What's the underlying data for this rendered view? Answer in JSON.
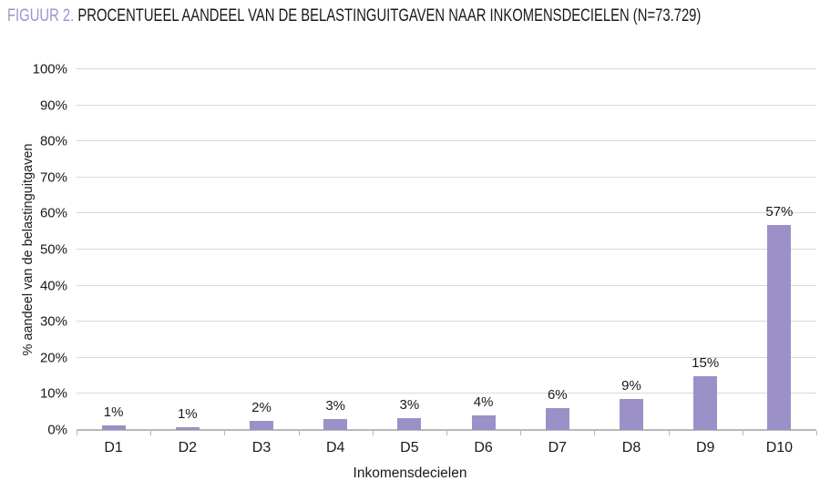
{
  "figure": {
    "title_prefix": "FIGUUR 2.",
    "title_rest": " PROCENTUEEL AANDEEL VAN DE BELASTINGUITGAVEN NAAR INKOMENSDECIELEN (N=73.729)"
  },
  "chart_data": {
    "type": "bar",
    "title": "FIGUUR 2. PROCENTUEEL AANDEEL VAN DE BELASTINGUITGAVEN NAAR INKOMENSDECIELEN (N=73.729)",
    "categories": [
      "D1",
      "D2",
      "D3",
      "D4",
      "D5",
      "D6",
      "D7",
      "D8",
      "D9",
      "D10"
    ],
    "values": [
      1,
      1,
      2,
      3,
      3,
      4,
      6,
      9,
      15,
      57
    ],
    "value_labels": [
      "1%",
      "1%",
      "2%",
      "3%",
      "3%",
      "4%",
      "6%",
      "9%",
      "15%",
      "57%"
    ],
    "values_visual": [
      1.2,
      0.7,
      2.5,
      3.0,
      3.3,
      4.0,
      6.0,
      8.7,
      14.8,
      56.8
    ],
    "xlabel": "Inkomensdecielen",
    "ylabel": "% aandeel van de belastinguitgaven",
    "ylim": [
      0,
      100
    ],
    "ytick_step": 10,
    "ytick_labels": [
      "0%",
      "10%",
      "20%",
      "30%",
      "40%",
      "50%",
      "60%",
      "70%",
      "80%",
      "90%",
      "100%"
    ],
    "grid": true,
    "legend_position": "none",
    "colors": {
      "bar": "#9b90c7",
      "title_accent": "#9e93cc",
      "gridline": "#d9d9d9",
      "axis": "#b8b8b8",
      "text": "#191919"
    }
  }
}
